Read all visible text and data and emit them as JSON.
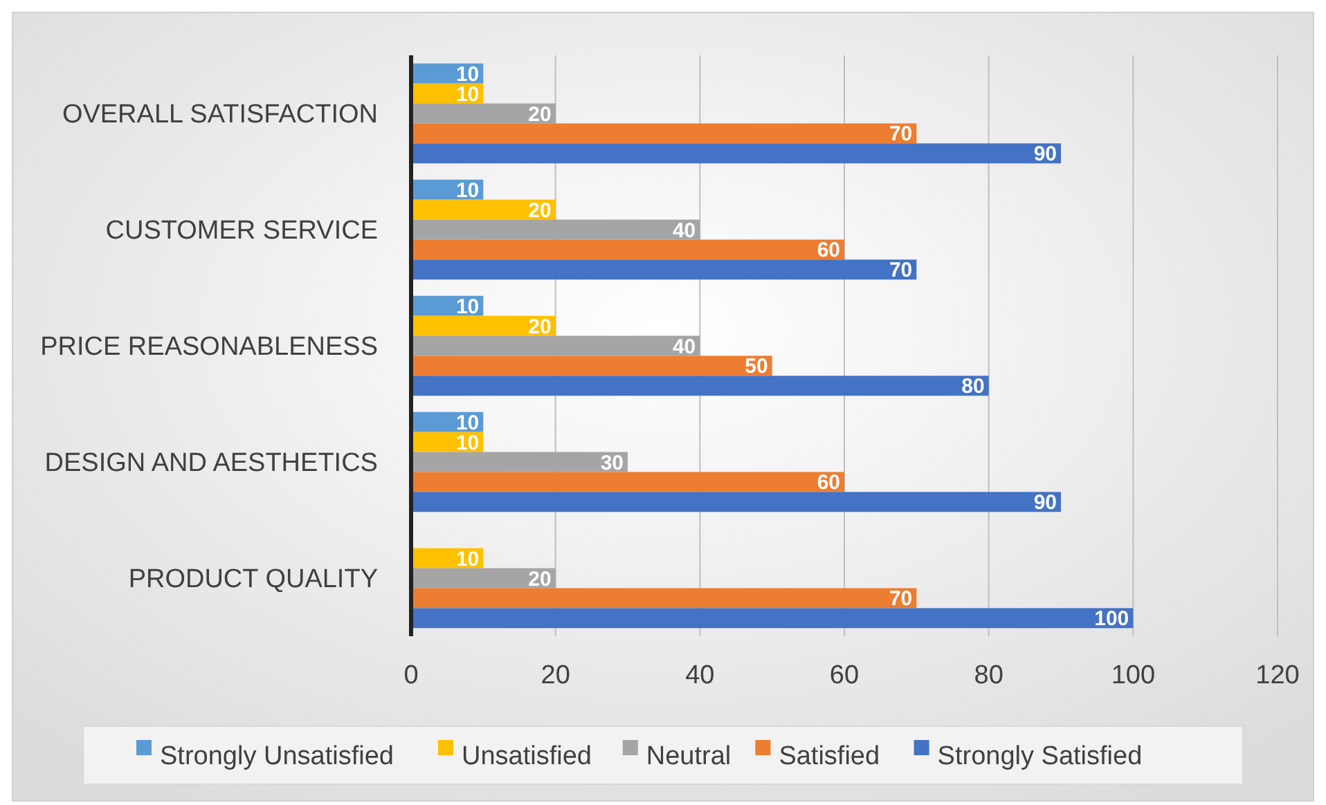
{
  "chart_data": {
    "type": "bar",
    "orientation": "horizontal",
    "categories": [
      "OVERALL SATISFACTION",
      "CUSTOMER SERVICE",
      "PRICE REASONABLENESS",
      "DESIGN AND AESTHETICS",
      "PRODUCT QUALITY"
    ],
    "series": [
      {
        "name": "Strongly Unsatisfied",
        "color": "#5b9bd5",
        "values": [
          10,
          10,
          10,
          10,
          null
        ]
      },
      {
        "name": "Unsatisfied",
        "color": "#ffc000",
        "values": [
          10,
          20,
          20,
          10,
          10
        ]
      },
      {
        "name": "Neutral",
        "color": "#a5a5a5",
        "values": [
          20,
          40,
          40,
          30,
          20
        ]
      },
      {
        "name": "Satisfied",
        "color": "#ed7d31",
        "values": [
          70,
          60,
          50,
          60,
          70
        ]
      },
      {
        "name": "Strongly Satisfied",
        "color": "#4472c4",
        "values": [
          90,
          70,
          80,
          90,
          100
        ]
      }
    ],
    "xlim": [
      0,
      120
    ],
    "xticks": [
      0,
      20,
      40,
      60,
      80,
      100,
      120
    ],
    "grid": "x",
    "legend": "bottom",
    "data_labels": true
  }
}
